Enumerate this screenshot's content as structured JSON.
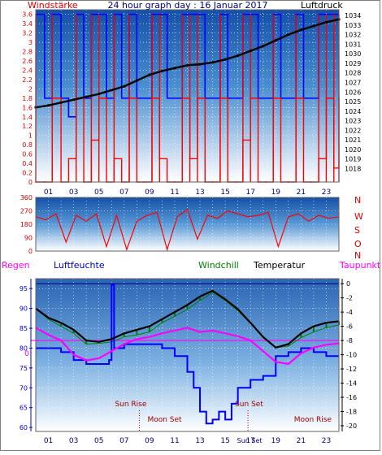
{
  "title": "24 hour graph day : 16 Januar 2017",
  "colors": {
    "wind": "#ff0000",
    "gust": "#0000ff",
    "pressure": "#000000",
    "direction": "#ff0000",
    "rain": "#0000ff",
    "humidity": "#0000ff",
    "windchill": "#008000",
    "temperature": "#000000",
    "dewpoint": "#ff00ff",
    "dewpoint_label": "#ff00ff",
    "rain_label": "#ff00ff",
    "humidity_label": "#0000ff",
    "windchill_label": "#008000",
    "astro": "#a00000"
  },
  "x_ticks": [
    "01",
    "03",
    "05",
    "07",
    "09",
    "11",
    "13",
    "15",
    "17",
    "19",
    "21",
    "23"
  ],
  "chart_data": [
    {
      "type": "line",
      "title": "24 hour graph day : 16 Januar 2017",
      "left_label": "Windstärke",
      "right_label": "Luftdruck",
      "left_ticks": [
        "3.6",
        "3.4",
        "3.2",
        "3",
        "2.8",
        "2.6",
        "2.4",
        "2.2",
        "2",
        "1.8",
        "1.6",
        "1.4",
        "1.2",
        "1",
        "0.8",
        "0.6",
        "0.4",
        "0.2",
        "0"
      ],
      "right_ticks": [
        "1034",
        "1033",
        "1032",
        "1031",
        "1030",
        "1029",
        "1028",
        "1027",
        "1026",
        "1025",
        "1024",
        "1023",
        "1022",
        "1021",
        "1020",
        "1019",
        "1018"
      ],
      "ylim_left": [
        0,
        3.7
      ],
      "ylim_right": [
        1016.6,
        1034.6
      ],
      "pressure": {
        "x": [
          0,
          1,
          2,
          3,
          4,
          5,
          6,
          7,
          8,
          9,
          10,
          11,
          12,
          13,
          14,
          15,
          16,
          17,
          18,
          19,
          20,
          21,
          22,
          23,
          24
        ],
        "values": [
          1024.4,
          1024.6,
          1024.9,
          1025.2,
          1025.5,
          1025.8,
          1026.2,
          1026.6,
          1027.2,
          1027.8,
          1028.2,
          1028.5,
          1028.8,
          1028.9,
          1029.1,
          1029.4,
          1029.8,
          1030.3,
          1030.8,
          1031.4,
          1032.0,
          1032.5,
          1032.9,
          1033.3,
          1033.6
        ]
      },
      "wind": {
        "x": [
          0,
          0.7,
          1.3,
          2.0,
          2.6,
          3.2,
          3.8,
          4.4,
          5.0,
          5.6,
          6.2,
          6.8,
          7.4,
          8.0,
          8.6,
          9.2,
          9.8,
          10.4,
          11.0,
          11.6,
          12.2,
          12.8,
          13.4,
          14.0,
          14.6,
          15.2,
          15.8,
          16.4,
          17.0,
          17.6,
          18.2,
          18.8,
          19.4,
          20.0,
          20.6,
          21.2,
          21.8,
          22.4,
          23.0,
          23.6,
          24.0
        ],
        "values": [
          0,
          0,
          1.8,
          0,
          0.5,
          1.8,
          0,
          0.9,
          1.8,
          0,
          0.5,
          0,
          1.8,
          0,
          0,
          1.8,
          0.5,
          0,
          0,
          1.8,
          0.5,
          1.8,
          0,
          0,
          1.8,
          0,
          0,
          0.9,
          1.8,
          0,
          0,
          1.8,
          0,
          0,
          1.8,
          0,
          0,
          0.5,
          1.8,
          0.3,
          1.8
        ]
      },
      "gust": {
        "x": [
          0,
          0.7,
          1.3,
          2.0,
          2.6,
          3.2,
          3.8,
          4.4,
          5.0,
          5.6,
          6.2,
          6.8,
          7.4,
          8.0,
          8.6,
          9.2,
          9.8,
          10.4,
          11.0,
          11.6,
          12.2,
          12.8,
          13.4,
          14.0,
          14.6,
          15.2,
          15.8,
          16.4,
          17.0,
          17.6,
          18.2,
          18.8,
          19.4,
          20.0,
          20.6,
          21.2,
          21.8,
          22.4,
          23.0,
          23.6,
          24.0
        ],
        "values": [
          3.6,
          1.8,
          3.6,
          1.8,
          1.4,
          3.6,
          1.8,
          3.6,
          3.6,
          1.8,
          3.6,
          1.8,
          3.6,
          1.8,
          1.8,
          3.6,
          3.6,
          1.8,
          1.8,
          3.6,
          3.6,
          3.6,
          1.8,
          1.8,
          3.6,
          1.8,
          1.8,
          3.6,
          3.6,
          1.8,
          1.8,
          3.6,
          1.8,
          1.8,
          3.6,
          1.8,
          1.8,
          3.6,
          3.6,
          3.6,
          3.6
        ]
      }
    },
    {
      "type": "line",
      "title": "",
      "left_ticks": [
        "360",
        "270",
        "180",
        "90",
        "0"
      ],
      "right_labels": [
        "N",
        "W",
        "S",
        "O",
        "N"
      ],
      "ylim": [
        0,
        360
      ],
      "direction": {
        "x": [
          0,
          0.8,
          1.6,
          2.4,
          3.2,
          4.0,
          4.8,
          5.6,
          6.4,
          7.2,
          8.0,
          8.8,
          9.6,
          10.4,
          11.2,
          12.0,
          12.8,
          13.6,
          14.4,
          15.2,
          16.0,
          16.8,
          17.6,
          18.4,
          19.2,
          20.0,
          20.8,
          21.6,
          22.4,
          23.2,
          24.0
        ],
        "values": [
          230,
          210,
          250,
          60,
          240,
          200,
          250,
          30,
          240,
          10,
          200,
          240,
          260,
          10,
          230,
          280,
          80,
          240,
          220,
          270,
          250,
          230,
          240,
          260,
          30,
          230,
          250,
          200,
          240,
          220,
          230
        ]
      }
    },
    {
      "type": "line",
      "labels": {
        "rain": "Regen",
        "humidity": "Luftfeuchte",
        "windchill": "Windchill",
        "temperature": "Temperatur",
        "dewpoint": "Taupunkt"
      },
      "left_ticks": [
        "95",
        "90",
        "85",
        "80",
        "75",
        "70",
        "65",
        "60"
      ],
      "right_ticks": [
        "0",
        "-2",
        "-4",
        "-6",
        "-8",
        "-10",
        "-12",
        "-14",
        "-16",
        "-18",
        "-20"
      ],
      "rain_value": "0",
      "ylim_left": [
        59,
        97.5
      ],
      "ylim_right": [
        -20.8,
        0.7
      ],
      "humidity": {
        "x": [
          0,
          1,
          2,
          3,
          4,
          5,
          5.8,
          6.0,
          6.2,
          7,
          8,
          9,
          10,
          11,
          12,
          12.5,
          13,
          13.5,
          14,
          14.5,
          15,
          15.5,
          16,
          17,
          18,
          19,
          20,
          21,
          22,
          23,
          24
        ],
        "values": [
          80,
          80,
          79,
          77,
          76,
          76,
          77,
          96,
          80,
          81,
          81,
          81,
          80,
          78,
          74,
          70,
          64,
          61,
          62,
          64,
          62,
          66,
          70,
          72,
          73,
          78,
          79,
          80,
          79,
          78,
          78
        ]
      },
      "temperature": {
        "x": [
          0,
          1,
          2,
          3,
          4,
          5,
          6,
          7,
          8,
          9,
          10,
          11,
          12,
          13,
          14,
          15,
          16,
          17,
          18,
          19,
          20,
          21,
          22,
          23,
          24
        ],
        "values": [
          -3.5,
          -4.8,
          -5.5,
          -6.5,
          -8.0,
          -8.2,
          -7.8,
          -7.0,
          -6.5,
          -6.0,
          -5.0,
          -4.0,
          -3.0,
          -1.8,
          -1.0,
          -2.2,
          -3.6,
          -5.5,
          -7.5,
          -9.0,
          -8.5,
          -7.0,
          -6.0,
          -5.5,
          -5.3
        ]
      },
      "windchill": {
        "x": [
          0,
          1,
          2,
          3,
          4,
          5,
          6,
          7,
          8,
          9,
          10,
          11,
          12,
          13,
          14,
          15,
          16,
          17,
          18,
          19,
          20,
          21,
          22,
          23,
          24
        ],
        "values": [
          -3.5,
          -5.0,
          -6.0,
          -7.0,
          -8.5,
          -8.4,
          -8.2,
          -7.5,
          -7.2,
          -6.8,
          -5.5,
          -4.6,
          -3.6,
          -2.4,
          -1.2,
          -2.4,
          -3.8,
          -5.6,
          -7.6,
          -9.0,
          -8.8,
          -7.6,
          -6.8,
          -6.2,
          -5.8
        ]
      },
      "dewpoint": {
        "x": [
          0,
          1,
          2,
          3,
          4,
          5,
          6,
          7,
          8,
          9,
          10,
          11,
          12,
          13,
          14,
          15,
          16,
          17,
          18,
          19,
          20,
          21,
          22,
          23,
          24
        ],
        "values": [
          -6.2,
          -7.2,
          -8.0,
          -10.0,
          -10.8,
          -10.5,
          -9.5,
          -8.5,
          -7.8,
          -7.5,
          -7.0,
          -6.6,
          -6.2,
          -6.8,
          -6.6,
          -7.0,
          -7.4,
          -8.0,
          -9.5,
          -11.0,
          -11.3,
          -9.8,
          -9.0,
          -8.6,
          -8.4
        ]
      },
      "astro": {
        "sun_rise": {
          "label": "Sun Rise",
          "hour": 8.2
        },
        "moon_set": {
          "label": "Moon Set",
          "hour": 8.2
        },
        "sun_set": {
          "label": "Sun Set",
          "hour": 16.8
        },
        "moon_rise": {
          "label": "Moon Rise",
          "hour": 21.6
        },
        "sun_set_axis_label": "Sun Set"
      }
    }
  ]
}
